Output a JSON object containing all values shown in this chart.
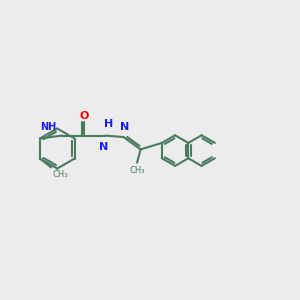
{
  "bg_color": "#ececec",
  "bond_color": "#4a7a60",
  "bond_width": 1.5,
  "N_color": "#1a1aff",
  "O_color": "#ff0000",
  "figsize": [
    3.0,
    3.0
  ],
  "dpi": 100,
  "xlim": [
    0,
    10
  ],
  "ylim": [
    0,
    10
  ]
}
